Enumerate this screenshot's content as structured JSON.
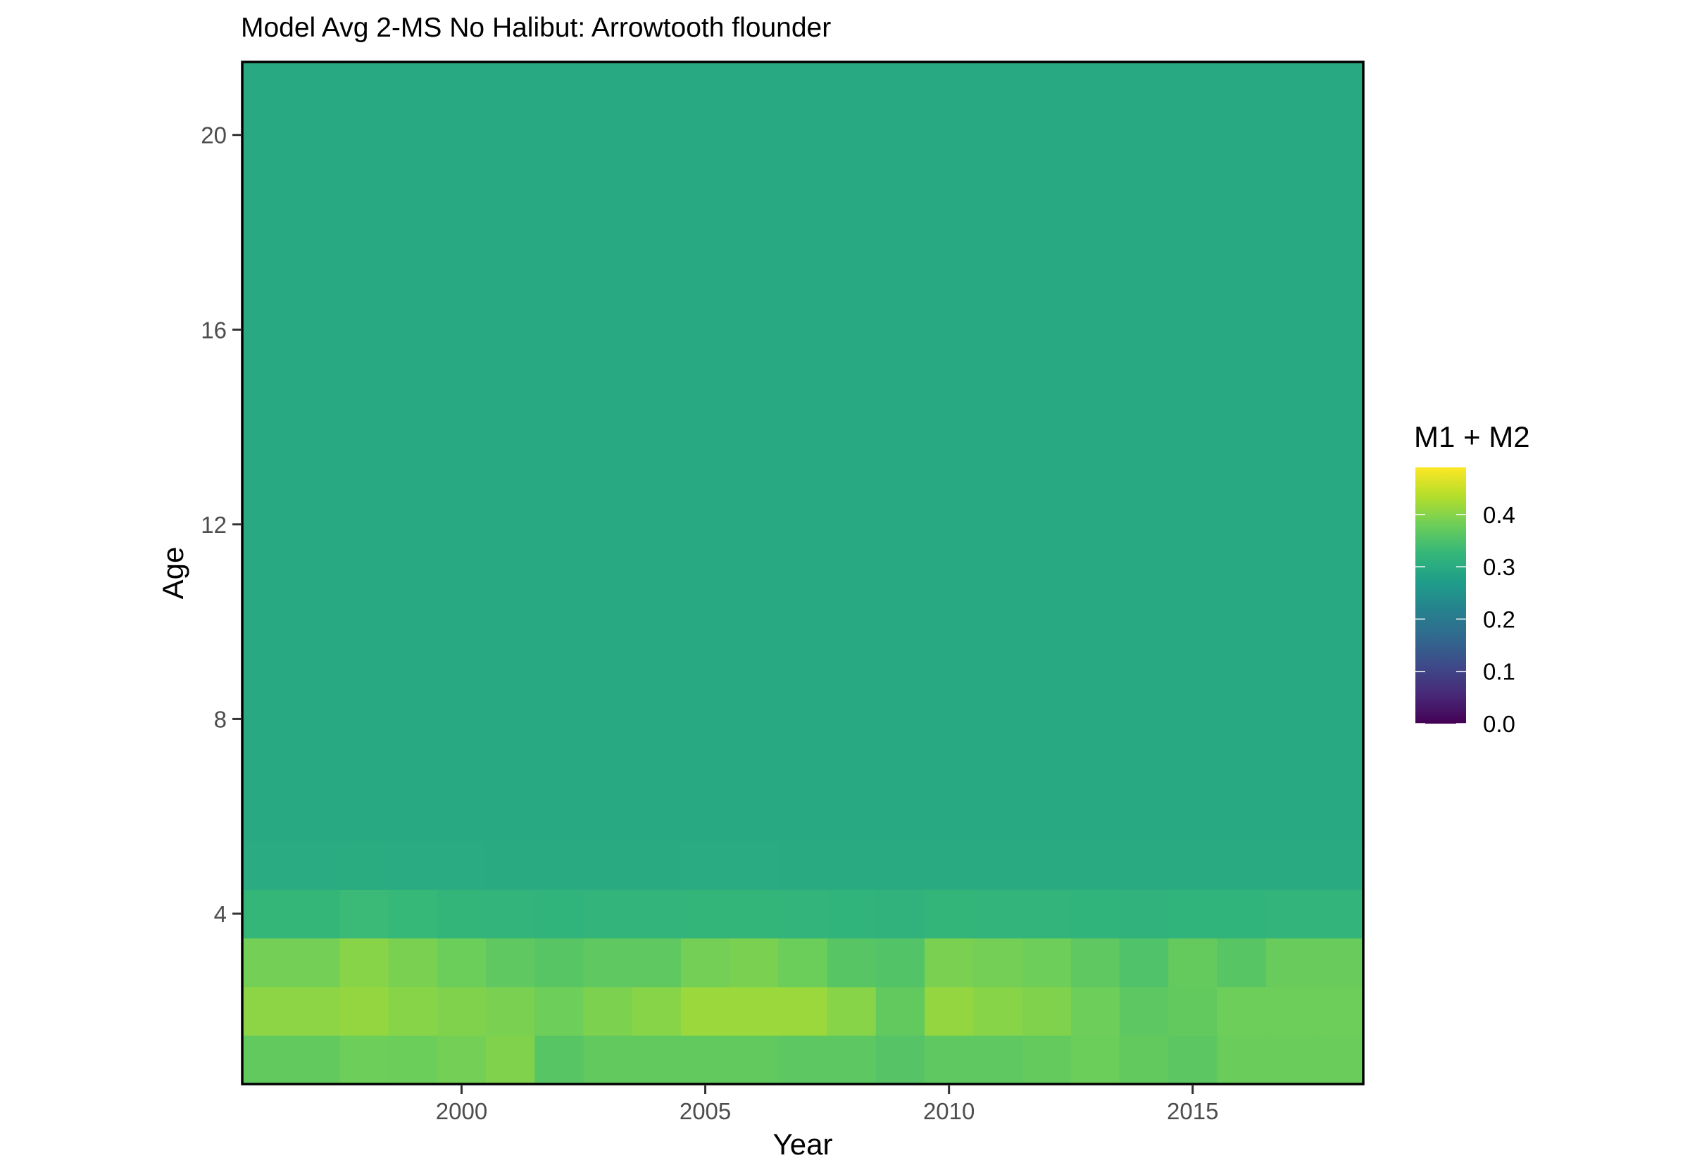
{
  "chart_data": {
    "type": "heatmap",
    "title": "Model Avg 2-MS No Halibut: Arrowtooth flounder",
    "xlabel": "Year",
    "ylabel": "Age",
    "x": [
      1996,
      1997,
      1998,
      1999,
      2000,
      2001,
      2002,
      2003,
      2004,
      2005,
      2006,
      2007,
      2008,
      2009,
      2010,
      2011,
      2012,
      2013,
      2014,
      2015,
      2016,
      2017,
      2018
    ],
    "x_ticks": [
      "2000",
      "2005",
      "2010",
      "2015"
    ],
    "x_tick_values": [
      2000,
      2005,
      2010,
      2015
    ],
    "xlim": [
      1995.5,
      2018.5
    ],
    "y_ticks": [
      "4",
      "8",
      "12",
      "16",
      "20"
    ],
    "y_tick_values": [
      4,
      8,
      12,
      16,
      20
    ],
    "ylim": [
      0.5,
      21.5
    ],
    "rows": [
      {
        "age": 1,
        "values": [
          0.37,
          0.37,
          0.38,
          0.378,
          0.385,
          0.395,
          0.36,
          0.37,
          0.37,
          0.37,
          0.37,
          0.365,
          0.365,
          0.358,
          0.367,
          0.367,
          0.372,
          0.378,
          0.37,
          0.364,
          0.376,
          0.376,
          0.376
        ]
      },
      {
        "age": 2,
        "values": [
          0.405,
          0.405,
          0.41,
          0.4,
          0.395,
          0.39,
          0.38,
          0.392,
          0.4,
          0.415,
          0.415,
          0.415,
          0.4,
          0.37,
          0.41,
          0.4,
          0.395,
          0.38,
          0.365,
          0.37,
          0.38,
          0.38,
          0.38
        ]
      },
      {
        "age": 3,
        "values": [
          0.385,
          0.385,
          0.4,
          0.39,
          0.378,
          0.368,
          0.36,
          0.368,
          0.368,
          0.385,
          0.39,
          0.378,
          0.36,
          0.355,
          0.39,
          0.385,
          0.38,
          0.368,
          0.352,
          0.372,
          0.36,
          0.375,
          0.375
        ]
      },
      {
        "age": 4,
        "values": [
          0.325,
          0.325,
          0.332,
          0.328,
          0.322,
          0.32,
          0.318,
          0.32,
          0.32,
          0.322,
          0.322,
          0.32,
          0.318,
          0.316,
          0.322,
          0.32,
          0.32,
          0.318,
          0.316,
          0.318,
          0.318,
          0.32,
          0.32
        ]
      },
      {
        "age": 5,
        "values": [
          0.3,
          0.3,
          0.302,
          0.301,
          0.3,
          0.299,
          0.299,
          0.299,
          0.299,
          0.3,
          0.3,
          0.299,
          0.298,
          0.298,
          0.299,
          0.299,
          0.299,
          0.298,
          0.298,
          0.298,
          0.298,
          0.299,
          0.299
        ]
      },
      {
        "age": 6,
        "band_to": 21,
        "value": 0.297
      }
    ],
    "legend": {
      "title": "M1 + M2",
      "placement": "right",
      "min": 0.0,
      "max": 0.49,
      "breaks": [
        0.0,
        0.1,
        0.2,
        0.3,
        0.4
      ],
      "break_labels": [
        "0.0",
        "0.1",
        "0.2",
        "0.3",
        "0.4"
      ],
      "palette": [
        "#440154",
        "#482878",
        "#3e4989",
        "#31688e",
        "#26828e",
        "#1f9e89",
        "#35b779",
        "#6ece58",
        "#b5de2b",
        "#fde725"
      ]
    },
    "grid": false
  }
}
